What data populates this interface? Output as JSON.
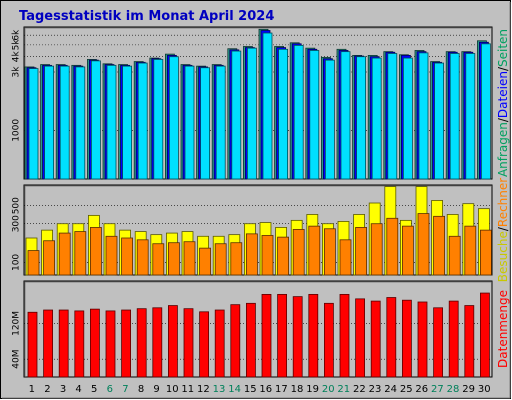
{
  "chart_data": {
    "type": "bar",
    "title": "Tagesstatistik im Monat April 2024",
    "categories": [
      "1",
      "2",
      "3",
      "4",
      "5",
      "6",
      "7",
      "8",
      "9",
      "10",
      "11",
      "12",
      "13",
      "14",
      "15",
      "16",
      "17",
      "18",
      "19",
      "20",
      "21",
      "22",
      "23",
      "24",
      "25",
      "26",
      "27",
      "28",
      "29",
      "30"
    ],
    "weekend_categories": [
      "6",
      "7",
      "13",
      "14",
      "20",
      "21",
      "27",
      "28"
    ],
    "panels": [
      {
        "id": "top",
        "scale": "log",
        "ylim": [
          400,
          7000
        ],
        "yticks": [
          {
            "label": "1000",
            "value": 1000
          },
          {
            "label": "3k",
            "value": 3000
          },
          {
            "label": "4k",
            "value": 4000
          },
          {
            "label": "5k",
            "value": 5000
          },
          {
            "label": "6k",
            "value": 6000
          }
        ],
        "series": [
          {
            "name": "Seiten",
            "color": "#2a9a8a",
            "values": [
              3300,
              3450,
              3450,
              3400,
              3800,
              3500,
              3450,
              3650,
              3900,
              4200,
              3450,
              3350,
              3450,
              4650,
              4850,
              6700,
              4850,
              5200,
              4700,
              3950,
              4600,
              4100,
              4100,
              4400,
              4150,
              4500,
              3650,
              4400,
              4400,
              5400
            ]
          },
          {
            "name": "Dateien",
            "color": "#0000ff",
            "values": [
              3250,
              3400,
              3400,
              3350,
              3750,
              3450,
              3400,
              3600,
              3850,
              4100,
              3400,
              3300,
              3400,
              4550,
              4750,
              6550,
              4750,
              5100,
              4600,
              3850,
              4500,
              4050,
              4000,
              4350,
              4100,
              4400,
              3600,
              4350,
              4350,
              5250
            ]
          },
          {
            "name": "Anfragen",
            "color": "#00e0ff",
            "values": [
              3200,
              3350,
              3350,
              3300,
              3700,
              3400,
              3350,
              3550,
              3800,
              4000,
              3350,
              3250,
              3350,
              4450,
              4700,
              6250,
              4600,
              4950,
              4500,
              3750,
              4400,
              4000,
              3900,
              4250,
              3900,
              4300,
              3550,
              4250,
              4250,
              5100
            ]
          }
        ],
        "legend": [
          "Anfragen",
          "/",
          "Dateien",
          "/",
          "Seiten"
        ],
        "legend_colors": [
          "#00a060",
          "#000000",
          "#0000ff",
          "#000000",
          "#00a060"
        ]
      },
      {
        "id": "middle",
        "scale": "log",
        "ylim": [
          70,
          900
        ],
        "yticks": [
          {
            "label": "100",
            "value": 100
          },
          {
            "label": "300",
            "value": 300
          },
          {
            "label": "500",
            "value": 500
          }
        ],
        "series": [
          {
            "name": "Besuche",
            "color": "#ffff00",
            "values": [
              200,
              250,
              300,
              300,
              380,
              300,
              250,
              240,
              220,
              230,
              240,
              210,
              210,
              220,
              300,
              310,
              270,
              330,
              390,
              300,
              320,
              390,
              540,
              860,
              330,
              860,
              580,
              390,
              530,
              460
            ]
          },
          {
            "name": "Rechner",
            "color": "#ff8000",
            "values": [
              140,
              185,
              230,
              240,
              270,
              210,
              200,
              190,
              170,
              175,
              180,
              150,
              170,
              175,
              225,
              215,
              205,
              255,
              280,
              260,
              190,
              270,
              300,
              350,
              280,
              400,
              370,
              210,
              280,
              250
            ]
          }
        ],
        "legend": [
          "Besuche",
          "/",
          "Rechner"
        ],
        "legend_colors": [
          "#c8c800",
          "#000000",
          "#ff8000"
        ]
      },
      {
        "id": "bottom",
        "scale": "linear",
        "ylim": [
          0,
          215
        ],
        "yticks": [
          {
            "label": "40M",
            "value": 40
          },
          {
            "label": "120M",
            "value": 120
          }
        ],
        "series": [
          {
            "name": "Datenmenge",
            "color": "#ff0000",
            "values": [
              145,
              150,
              150,
              148,
              152,
              148,
              150,
              153,
              155,
              160,
              153,
              146,
              150,
              162,
              165,
              185,
              185,
              180,
              185,
              165,
              185,
              175,
              170,
              178,
              172,
              168,
              155,
              170,
              160,
              188
            ]
          }
        ],
        "legend": [
          "Datenmenge"
        ],
        "legend_colors": [
          "#ff0000"
        ]
      }
    ],
    "colors": {
      "background": "#c0c0c0",
      "plot": "#c0c0c0",
      "grid": "#000000",
      "title": "#0000c0",
      "weekday_label": "#000000",
      "weekend_label": "#00805a"
    }
  }
}
